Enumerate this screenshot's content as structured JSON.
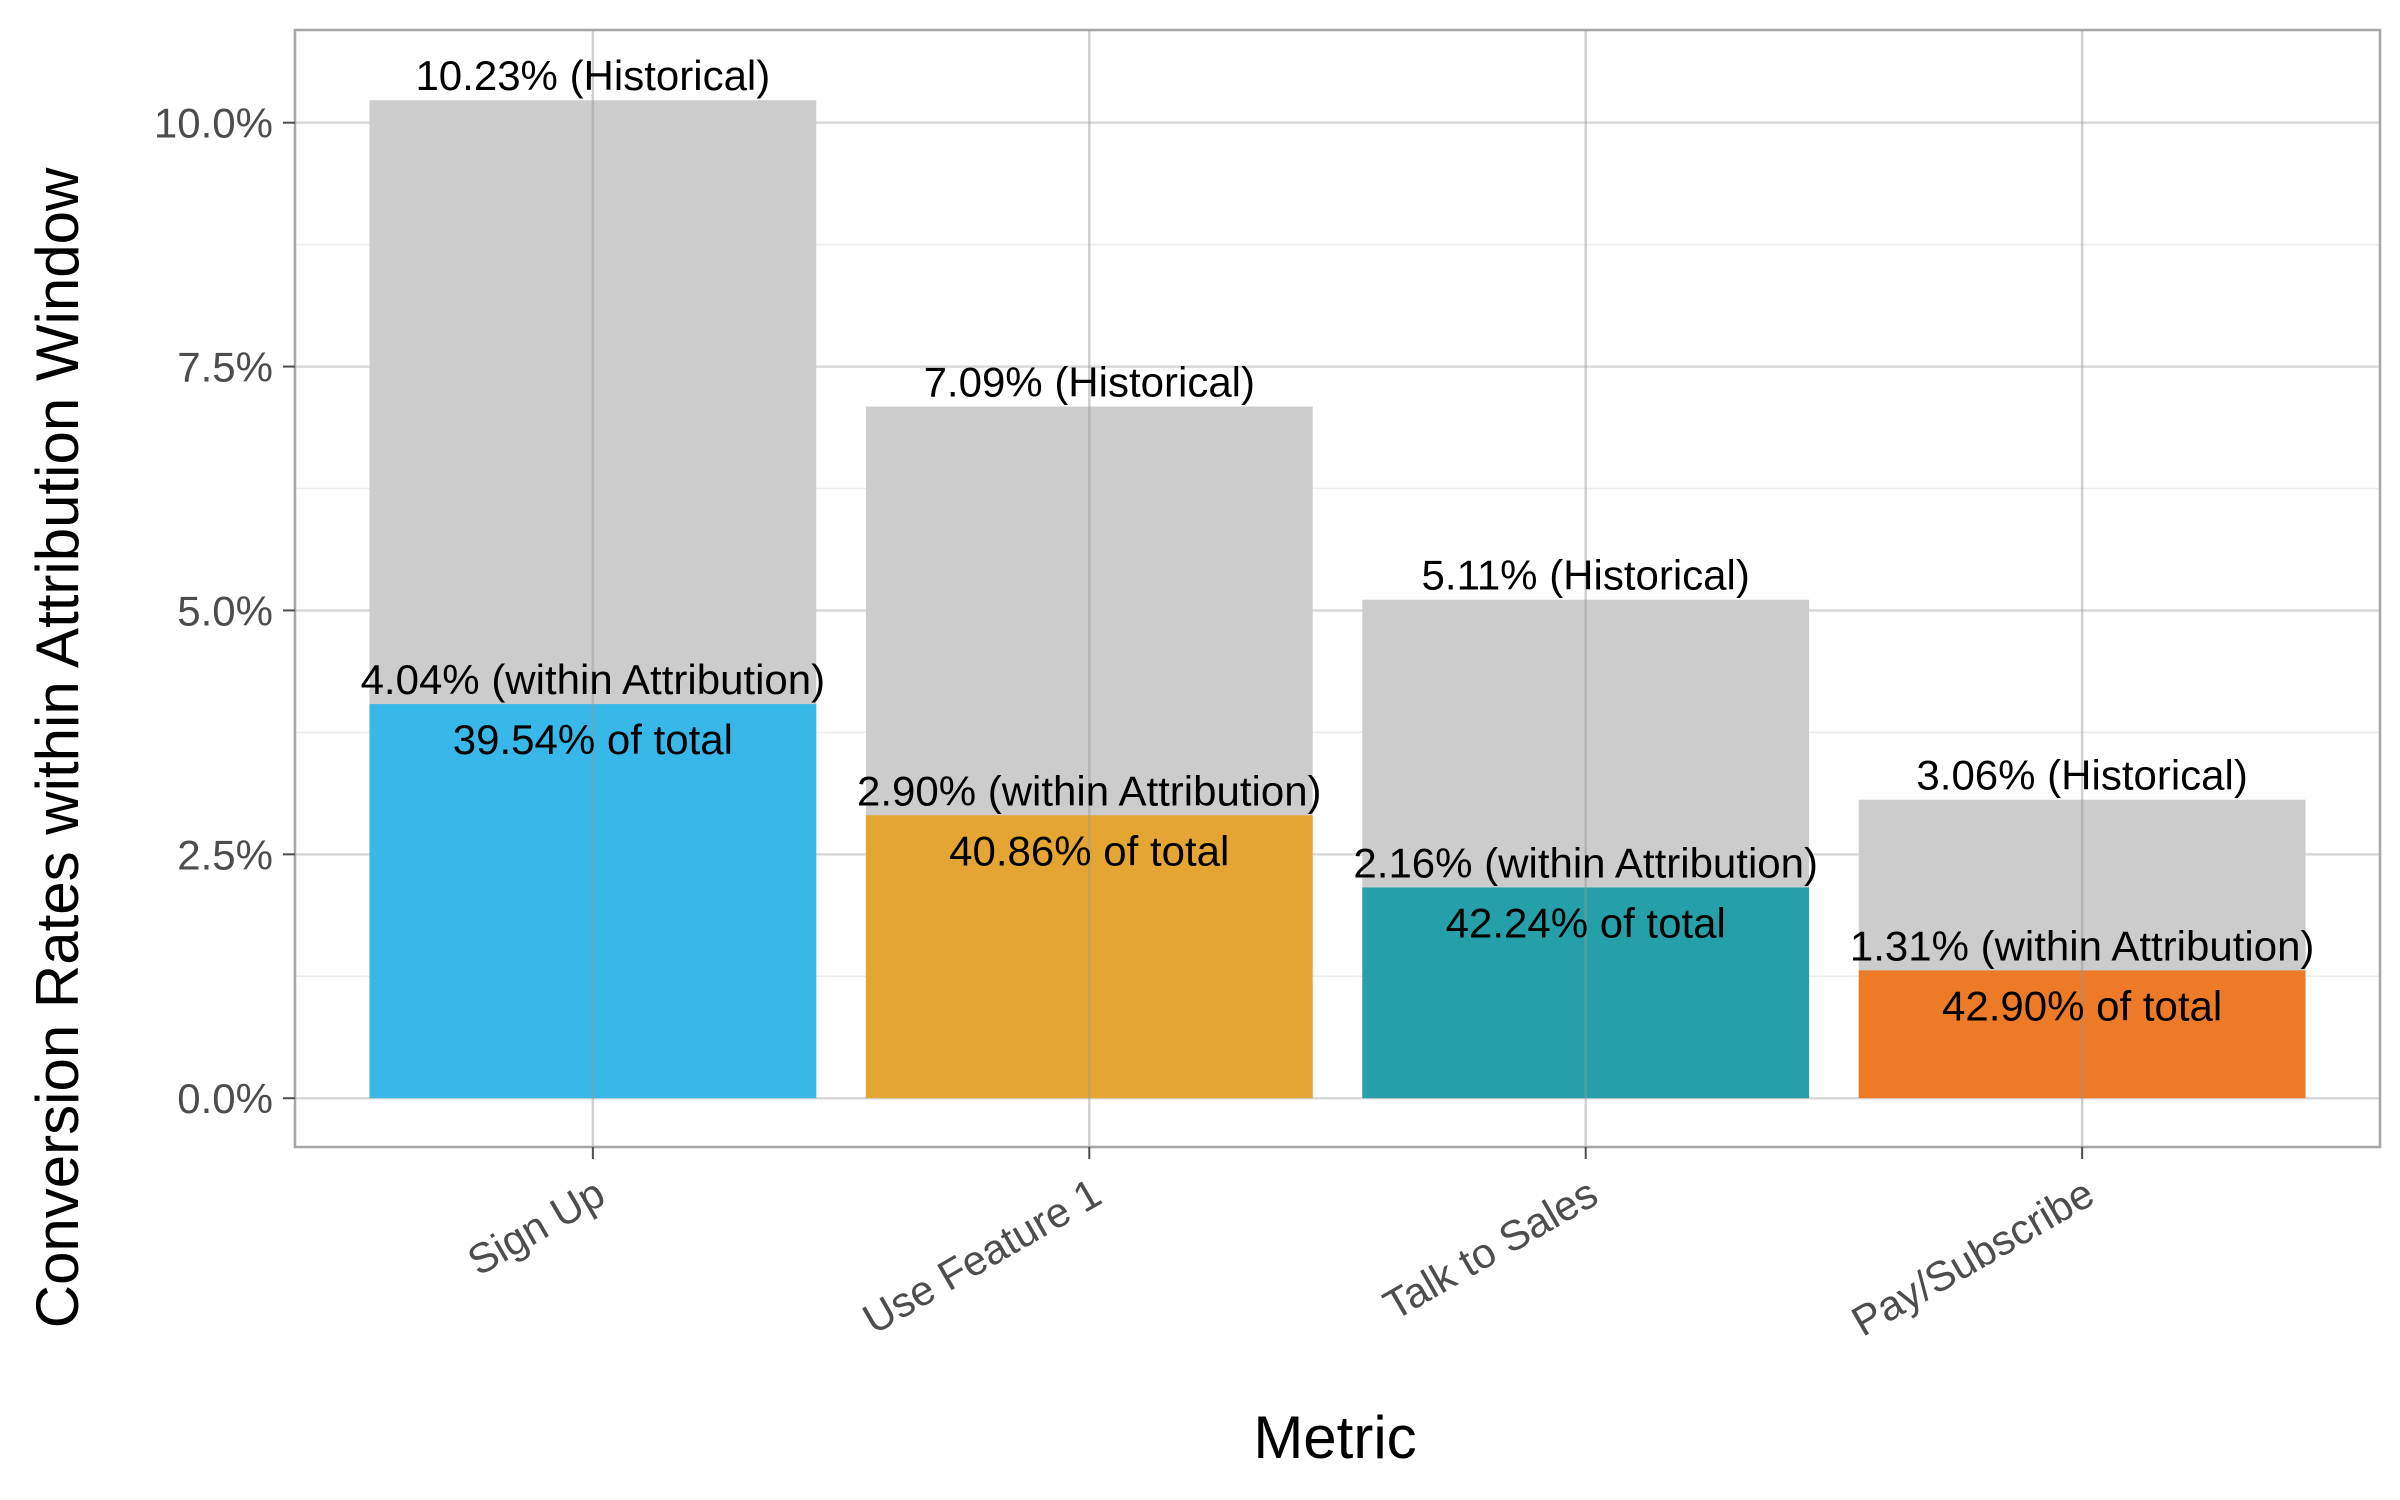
{
  "chart_data": {
    "type": "bar",
    "xlabel": "Metric",
    "ylabel": "Conversion Rates within Attribution Window",
    "ylim": [
      -0.5,
      10.95
    ],
    "y_ticks": [
      0,
      2.5,
      5,
      7.5,
      10
    ],
    "y_tick_labels": [
      "0.0%",
      "2.5%",
      "5.0%",
      "7.5%",
      "10.0%"
    ],
    "categories": [
      "Sign Up",
      "Use Feature 1",
      "Talk to Sales",
      "Pay/Subscribe"
    ],
    "grid": true,
    "legend": "none",
    "series": [
      {
        "values": [
          10.23,
          7.09,
          5.11,
          3.06
        ],
        "labels": [
          "10.23% (Historical)",
          "7.09% (Historical)",
          "5.11% (Historical)",
          "3.06% (Historical)"
        ],
        "color": "#cccccc"
      },
      {
        "values": [
          4.04,
          2.9,
          2.16,
          1.31
        ],
        "labels": [
          "4.04% (within Attribution)",
          "2.90% (within Attribution)",
          "2.16% (within Attribution)",
          "1.31% (within Attribution)"
        ],
        "share_labels": [
          "39.54% of total",
          "40.86% of total",
          "42.24% of total",
          "42.90% of total"
        ],
        "colors": [
          "#38b8e8",
          "#e5a532",
          "#26a0a8",
          "#ec7a26"
        ]
      }
    ]
  }
}
